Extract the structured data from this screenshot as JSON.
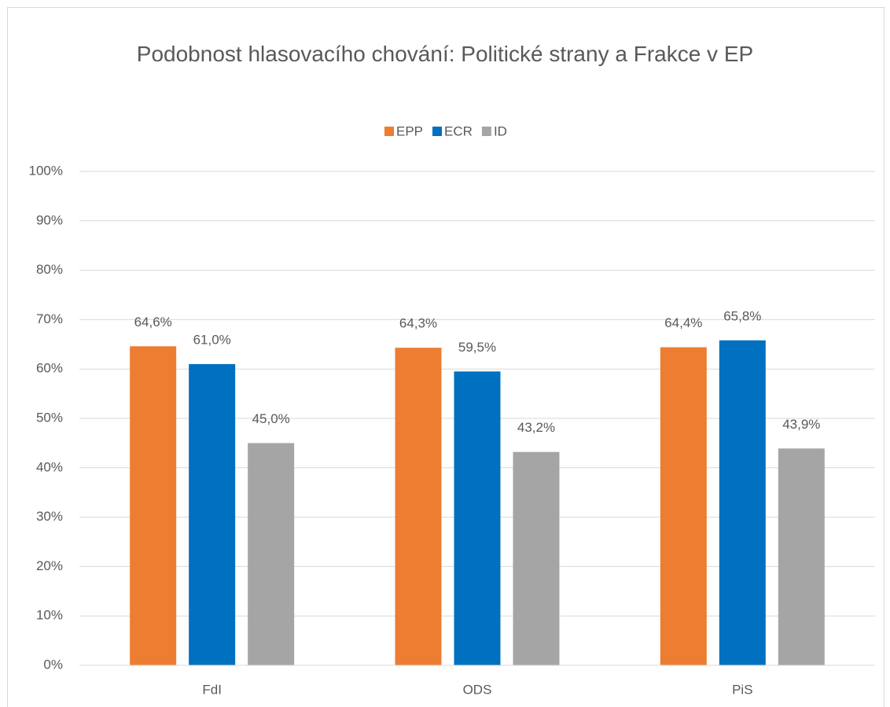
{
  "chart_data": {
    "type": "bar",
    "title": "Podobnost hlasovacího chování: Politické strany a Frakce v EP",
    "categories": [
      "FdI",
      "ODS",
      "PiS"
    ],
    "series": [
      {
        "name": "EPP",
        "color": "#ed7d31",
        "values": [
          64.6,
          64.3,
          64.4
        ],
        "value_labels": [
          "64,6%",
          "64,3%",
          "64,4%"
        ]
      },
      {
        "name": "ECR",
        "color": "#0070c0",
        "values": [
          61.0,
          59.5,
          65.8
        ],
        "value_labels": [
          "61,0%",
          "59,5%",
          "65,8%"
        ]
      },
      {
        "name": "ID",
        "color": "#a5a5a5",
        "values": [
          45.0,
          43.2,
          43.9
        ],
        "value_labels": [
          "45,0%",
          "43,2%",
          "43,9%"
        ]
      }
    ],
    "ylim": [
      0,
      100
    ],
    "yticks": [
      {
        "value": 0,
        "label": "0%"
      },
      {
        "value": 10,
        "label": "10%"
      },
      {
        "value": 20,
        "label": "20%"
      },
      {
        "value": 30,
        "label": "30%"
      },
      {
        "value": 40,
        "label": "40%"
      },
      {
        "value": 50,
        "label": "50%"
      },
      {
        "value": 60,
        "label": "60%"
      },
      {
        "value": 70,
        "label": "70%"
      },
      {
        "value": 80,
        "label": "80%"
      },
      {
        "value": 90,
        "label": "90%"
      },
      {
        "value": 100,
        "label": "100%"
      }
    ],
    "grid": true,
    "legend": "top"
  }
}
